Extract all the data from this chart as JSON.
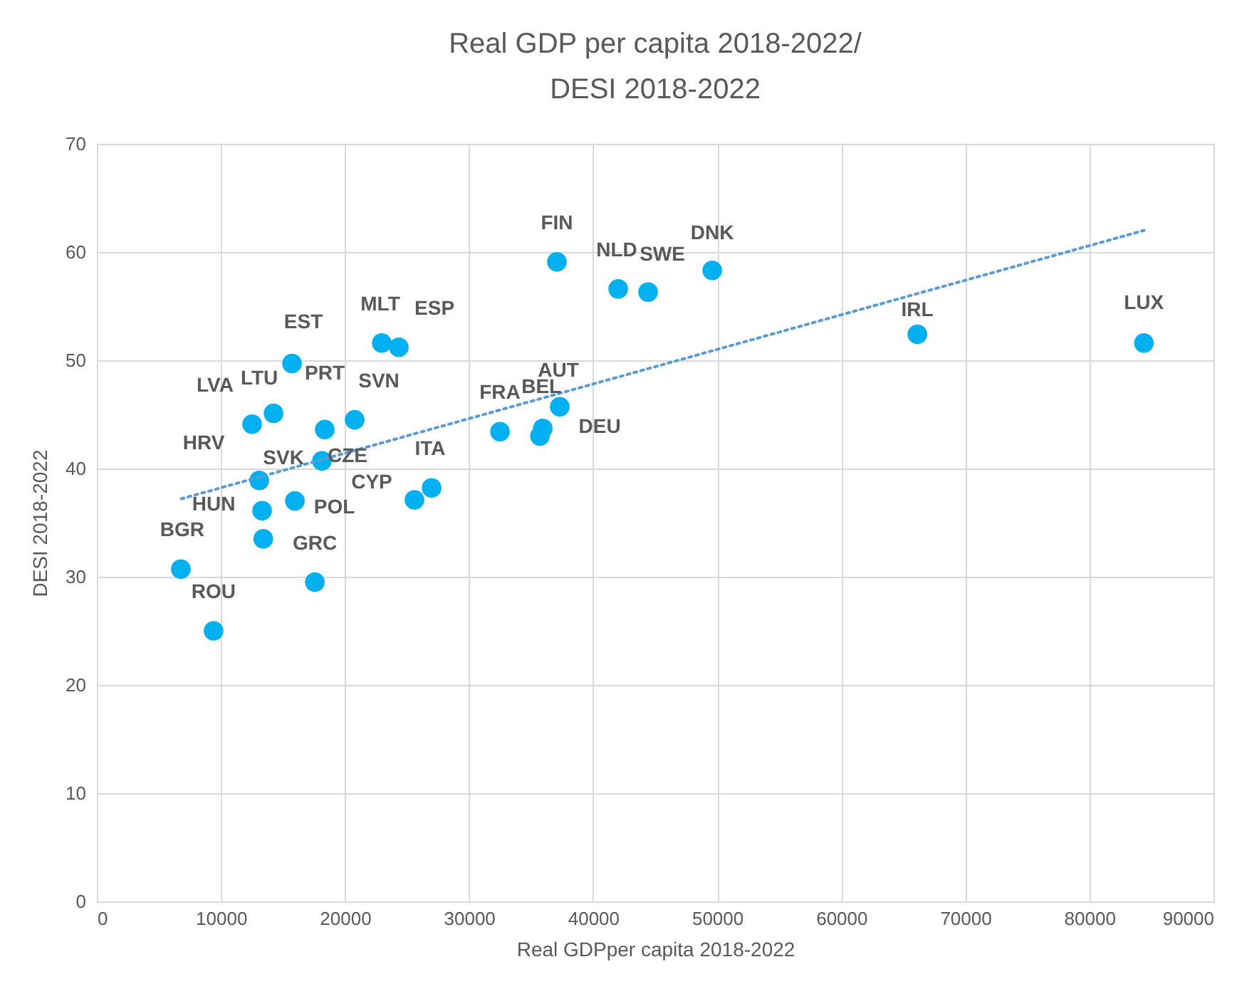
{
  "chart_data": {
    "type": "scatter",
    "title": "Real GDP per capita 2018-2022/\nDESI 2018-2022",
    "xlabel": "Real GDPper capita 2018-2022",
    "ylabel": "DESI 2018-2022",
    "xlim": [
      0,
      90000
    ],
    "xticks": [
      0,
      10000,
      20000,
      30000,
      40000,
      50000,
      60000,
      70000,
      80000,
      90000
    ],
    "ylim": [
      0,
      70
    ],
    "yticks": [
      0,
      10,
      20,
      30,
      40,
      50,
      60,
      70
    ],
    "grid": true,
    "marker": "circle",
    "series": [
      {
        "type": "scatter",
        "color": "#00b0f0",
        "x": [
          37080,
          42020,
          44430,
          49600,
          66130,
          84390,
          22960,
          24340,
          15730,
          14240,
          12510,
          18370,
          20780,
          32490,
          35940,
          35710,
          37310,
          18140,
          13090,
          15960,
          13320,
          13410,
          17570,
          6770,
          9410,
          25600,
          26980
        ],
        "values": [
          59.1,
          56.6,
          56.3,
          58.3,
          52.4,
          51.6,
          51.6,
          51.2,
          49.7,
          45.1,
          44.1,
          43.6,
          44.5,
          43.4,
          43.7,
          43.0,
          45.7,
          40.7,
          38.9,
          37.0,
          36.1,
          33.5,
          29.5,
          30.7,
          25.0,
          37.1,
          38.2
        ]
      },
      {
        "type": "line",
        "marker": "none",
        "color": "#5b9bd5",
        "line_style": "dotted",
        "x": [
          6800,
          84400
        ],
        "values": [
          37.2,
          62.0
        ]
      }
    ],
    "annotations": [
      {
        "text": "FIN",
        "x": 37080,
        "y": 59.1
      },
      {
        "text": "NLD",
        "x": 42020,
        "y": 56.6
      },
      {
        "text": "SWE",
        "x": 44430,
        "y": 56.3
      },
      {
        "text": "DNK",
        "x": 49600,
        "y": 58.3
      },
      {
        "text": "IRL",
        "x": 66130,
        "y": 52.4
      },
      {
        "text": "LUX",
        "x": 84390,
        "y": 51.6
      },
      {
        "text": "MLT",
        "x": 22960,
        "y": 51.6
      },
      {
        "text": "ESP",
        "x": 24340,
        "y": 51.2
      },
      {
        "text": "EST",
        "x": 15730,
        "y": 49.7
      },
      {
        "text": "LTU",
        "x": 14240,
        "y": 45.1
      },
      {
        "text": "LVA",
        "x": 12510,
        "y": 44.1
      },
      {
        "text": "PRT",
        "x": 18370,
        "y": 43.6
      },
      {
        "text": "SVN",
        "x": 20780,
        "y": 44.5
      },
      {
        "text": "FRA",
        "x": 32490,
        "y": 43.4
      },
      {
        "text": "BEL",
        "x": 35940,
        "y": 43.7
      },
      {
        "text": "DEU",
        "x": 35710,
        "y": 43.0
      },
      {
        "text": "AUT",
        "x": 37310,
        "y": 45.7
      },
      {
        "text": "CZE",
        "x": 18140,
        "y": 40.7
      },
      {
        "text": "HRV",
        "x": 13090,
        "y": 38.9
      },
      {
        "text": "SVK",
        "x": 15960,
        "y": 37.0
      },
      {
        "text": "HUN",
        "x": 13320,
        "y": 36.1
      },
      {
        "text": "POL",
        "x": 13410,
        "y": 33.5
      },
      {
        "text": "GRC",
        "x": 17570,
        "y": 29.5
      },
      {
        "text": "BGR",
        "x": 6770,
        "y": 30.7
      },
      {
        "text": "ROU",
        "x": 9410,
        "y": 25.0
      },
      {
        "text": "CYP",
        "x": 25600,
        "y": 37.1
      },
      {
        "text": "ITA",
        "x": 26980,
        "y": 38.2
      }
    ]
  }
}
